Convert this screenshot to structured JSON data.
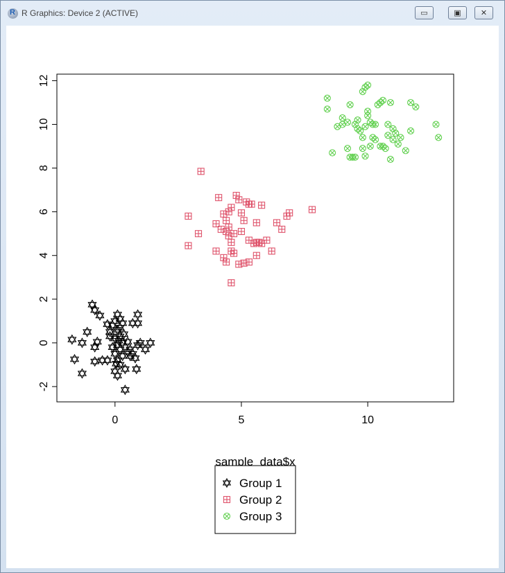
{
  "window": {
    "title": "R Graphics: Device 2 (ACTIVE)",
    "app_icon": "R-logo-icon",
    "buttons": [
      {
        "name": "minimize",
        "glyph": "▭"
      },
      {
        "name": "maximize",
        "glyph": "▣"
      },
      {
        "name": "close",
        "glyph": "✕"
      }
    ]
  },
  "chart_data": {
    "type": "scatter",
    "xlabel": "sample_data$x",
    "ylabel": "",
    "xlim": [
      -2.3,
      13.4
    ],
    "ylim": [
      -2.7,
      12.3
    ],
    "xticks": [
      0,
      5,
      10
    ],
    "xtick_labels": [
      "0",
      "5",
      "10"
    ],
    "yticks": [
      -2,
      0,
      2,
      4,
      6,
      8,
      10,
      12
    ],
    "ytick_labels": [
      "-2",
      "0",
      "2",
      "4",
      "6",
      "8",
      "10",
      "12"
    ],
    "grid": false,
    "legend_placement": "bottom-center",
    "series": [
      {
        "name": "Group 1",
        "color": "#000000",
        "marker": "star-of-david",
        "points": [
          [
            -0.9,
            1.75
          ],
          [
            -0.8,
            1.5
          ],
          [
            -0.6,
            1.25
          ],
          [
            -1.7,
            0.15
          ],
          [
            -1.3,
            0.0
          ],
          [
            -1.1,
            0.5
          ],
          [
            -0.8,
            -0.2
          ],
          [
            -0.7,
            0.05
          ],
          [
            -0.5,
            -0.8
          ],
          [
            -0.8,
            -0.85
          ],
          [
            -0.3,
            -0.8
          ],
          [
            -1.6,
            -0.75
          ],
          [
            -1.3,
            -1.4
          ],
          [
            -0.3,
            0.85
          ],
          [
            -0.2,
            0.5
          ],
          [
            -0.1,
            0.8
          ],
          [
            0.0,
            1.0
          ],
          [
            0.1,
            1.3
          ],
          [
            0.2,
            1.1
          ],
          [
            0.3,
            0.9
          ],
          [
            0.1,
            0.6
          ],
          [
            0.2,
            0.3
          ],
          [
            0.3,
            0.0
          ],
          [
            0.1,
            -0.1
          ],
          [
            0.2,
            -0.3
          ],
          [
            0.0,
            -0.5
          ],
          [
            0.1,
            -0.8
          ],
          [
            0.2,
            -1.0
          ],
          [
            0.0,
            -1.3
          ],
          [
            0.1,
            -1.5
          ],
          [
            0.4,
            -1.2
          ],
          [
            0.5,
            -0.4
          ],
          [
            0.6,
            -0.3
          ],
          [
            0.7,
            -0.5
          ],
          [
            0.8,
            -0.7
          ],
          [
            0.9,
            -0.1
          ],
          [
            1.0,
            0.0
          ],
          [
            0.9,
            0.9
          ],
          [
            0.9,
            1.3
          ],
          [
            1.2,
            -0.3
          ],
          [
            1.4,
            0.0
          ],
          [
            0.4,
            -2.15
          ],
          [
            0.0,
            0.2
          ],
          [
            0.2,
            0.7
          ],
          [
            -0.1,
            -0.2
          ],
          [
            0.3,
            -0.6
          ],
          [
            0.5,
            0.05
          ],
          [
            0.7,
            0.9
          ],
          [
            0.85,
            -1.2
          ],
          [
            -0.2,
            0.3
          ],
          [
            0.15,
            0.1
          ],
          [
            0.35,
            0.4
          ],
          [
            0.05,
            -0.95
          ],
          [
            0.6,
            -0.6
          ]
        ]
      },
      {
        "name": "Group 2",
        "color": "#DF536B",
        "marker": "square-plus",
        "points": [
          [
            3.4,
            7.85
          ],
          [
            2.9,
            5.8
          ],
          [
            2.9,
            4.45
          ],
          [
            3.3,
            5.0
          ],
          [
            4.1,
            6.65
          ],
          [
            4.0,
            5.45
          ],
          [
            4.2,
            5.2
          ],
          [
            4.3,
            5.9
          ],
          [
            4.4,
            5.6
          ],
          [
            4.5,
            6.0
          ],
          [
            4.6,
            6.2
          ],
          [
            4.4,
            5.1
          ],
          [
            4.5,
            4.9
          ],
          [
            4.6,
            4.6
          ],
          [
            4.7,
            4.1
          ],
          [
            4.3,
            3.9
          ],
          [
            4.4,
            3.7
          ],
          [
            4.6,
            4.2
          ],
          [
            4.0,
            4.2
          ],
          [
            4.8,
            6.75
          ],
          [
            4.9,
            6.55
          ],
          [
            5.0,
            5.95
          ],
          [
            5.1,
            5.6
          ],
          [
            5.2,
            6.45
          ],
          [
            5.3,
            6.35
          ],
          [
            5.4,
            6.35
          ],
          [
            5.0,
            5.1
          ],
          [
            5.3,
            4.7
          ],
          [
            5.5,
            4.55
          ],
          [
            5.6,
            4.6
          ],
          [
            5.7,
            4.6
          ],
          [
            5.8,
            4.55
          ],
          [
            5.6,
            5.5
          ],
          [
            5.6,
            4.0
          ],
          [
            5.8,
            6.3
          ],
          [
            6.0,
            4.7
          ],
          [
            6.2,
            4.2
          ],
          [
            6.4,
            5.5
          ],
          [
            6.6,
            5.2
          ],
          [
            6.8,
            5.8
          ],
          [
            6.9,
            5.95
          ],
          [
            7.8,
            6.1
          ],
          [
            4.6,
            2.75
          ],
          [
            4.9,
            3.6
          ],
          [
            5.1,
            3.65
          ],
          [
            5.3,
            3.7
          ],
          [
            4.5,
            5.3
          ],
          [
            4.7,
            5.0
          ]
        ]
      },
      {
        "name": "Group 3",
        "color": "#61D04F",
        "marker": "circle-x",
        "points": [
          [
            8.4,
            11.2
          ],
          [
            8.4,
            10.7
          ],
          [
            8.6,
            8.7
          ],
          [
            8.8,
            9.9
          ],
          [
            9.0,
            10.3
          ],
          [
            9.0,
            10.0
          ],
          [
            9.2,
            10.1
          ],
          [
            9.3,
            10.9
          ],
          [
            9.2,
            8.9
          ],
          [
            9.4,
            8.5
          ],
          [
            9.5,
            8.5
          ],
          [
            9.6,
            9.8
          ],
          [
            9.6,
            10.2
          ],
          [
            9.7,
            9.7
          ],
          [
            9.8,
            9.4
          ],
          [
            9.8,
            8.9
          ],
          [
            9.9,
            8.55
          ],
          [
            9.9,
            9.9
          ],
          [
            9.8,
            11.5
          ],
          [
            9.9,
            11.7
          ],
          [
            10.0,
            11.8
          ],
          [
            10.0,
            10.6
          ],
          [
            10.1,
            10.1
          ],
          [
            10.2,
            10.0
          ],
          [
            10.1,
            9.0
          ],
          [
            10.2,
            9.4
          ],
          [
            10.3,
            9.3
          ],
          [
            10.4,
            10.9
          ],
          [
            10.5,
            11.0
          ],
          [
            10.6,
            11.1
          ],
          [
            10.5,
            9.0
          ],
          [
            10.6,
            9.0
          ],
          [
            10.7,
            8.9
          ],
          [
            10.8,
            10.0
          ],
          [
            10.8,
            9.5
          ],
          [
            10.9,
            8.4
          ],
          [
            10.9,
            11.0
          ],
          [
            11.0,
            9.8
          ],
          [
            11.1,
            9.6
          ],
          [
            11.2,
            9.1
          ],
          [
            11.3,
            9.4
          ],
          [
            11.5,
            8.8
          ],
          [
            11.7,
            9.7
          ],
          [
            11.7,
            11.0
          ],
          [
            11.9,
            10.8
          ],
          [
            12.7,
            10.0
          ],
          [
            12.8,
            9.4
          ],
          [
            10.0,
            10.4
          ],
          [
            9.5,
            10.0
          ],
          [
            9.3,
            8.5
          ],
          [
            10.3,
            10.0
          ],
          [
            11.0,
            9.3
          ]
        ]
      }
    ]
  }
}
